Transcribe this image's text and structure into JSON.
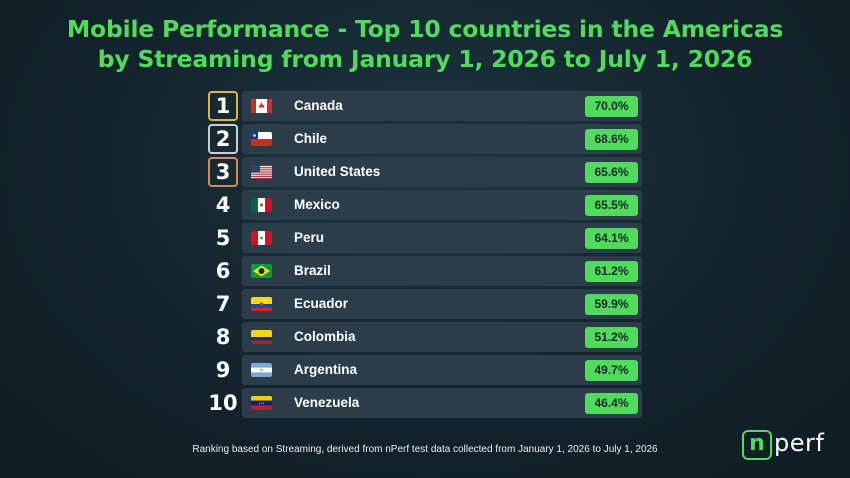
{
  "title": {
    "line1": "Mobile Performance - Top 10 countries in the Americas",
    "line2": "by Streaming from January 1, 2026 to July 1, 2026"
  },
  "rows": [
    {
      "rank": "1",
      "country": "Canada",
      "value": "70.0%",
      "flag": "canada-flag-icon"
    },
    {
      "rank": "2",
      "country": "Chile",
      "value": "68.6%",
      "flag": "chile-flag-icon"
    },
    {
      "rank": "3",
      "country": "United States",
      "value": "65.6%",
      "flag": "usa-flag-icon"
    },
    {
      "rank": "4",
      "country": "Mexico",
      "value": "65.5%",
      "flag": "mexico-flag-icon"
    },
    {
      "rank": "5",
      "country": "Peru",
      "value": "64.1%",
      "flag": "peru-flag-icon"
    },
    {
      "rank": "6",
      "country": "Brazil",
      "value": "61.2%",
      "flag": "brazil-flag-icon"
    },
    {
      "rank": "7",
      "country": "Ecuador",
      "value": "59.9%",
      "flag": "ecuador-flag-icon"
    },
    {
      "rank": "8",
      "country": "Colombia",
      "value": "51.2%",
      "flag": "colombia-flag-icon"
    },
    {
      "rank": "9",
      "country": "Argentina",
      "value": "49.7%",
      "flag": "argentina-flag-icon"
    },
    {
      "rank": "10",
      "country": "Venezuela",
      "value": "46.4%",
      "flag": "venezuela-flag-icon"
    }
  ],
  "footnote": "Ranking based on Streaming, derived from nPerf test data collected from January 1, 2026 to July 1, 2026",
  "logo": {
    "mark": "n",
    "text": "perf"
  },
  "colors": {
    "accent": "#4fdc5a",
    "gold": "#e2b43a",
    "silver": "#c9d0d6",
    "bronze": "#d98a5a",
    "row_bg": "#2b3d4a"
  }
}
